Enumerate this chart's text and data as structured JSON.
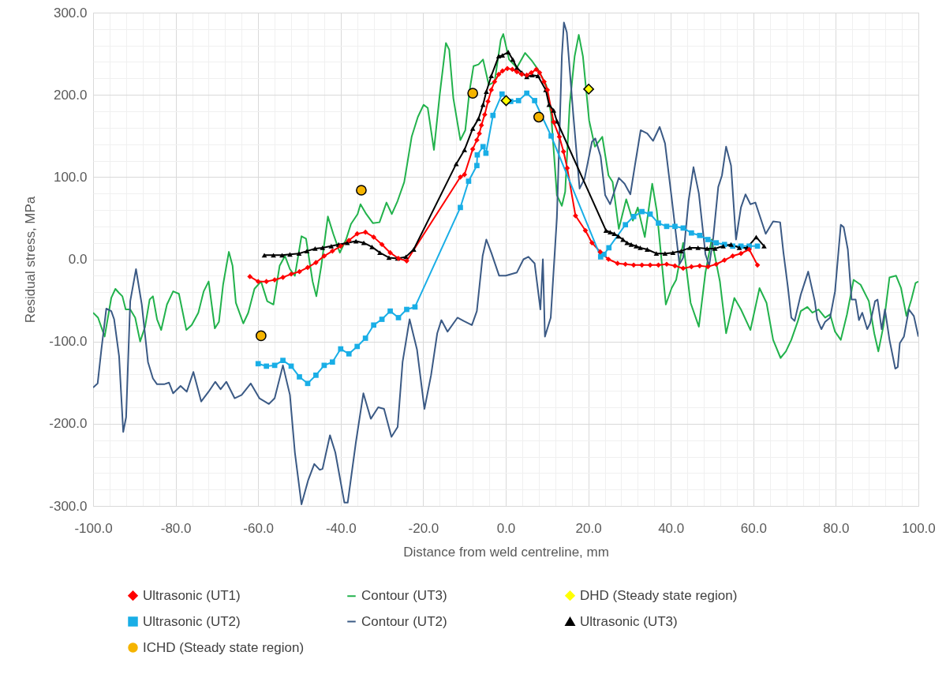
{
  "chart_data": {
    "type": "line",
    "xlabel": "Distance from weld centreline, mm",
    "ylabel": "Residual stress, MPa",
    "xlim": [
      -100,
      100
    ],
    "ylim": [
      -300,
      300
    ],
    "xticks": [
      {
        "value": -100,
        "label": "-100.0"
      },
      {
        "value": -80,
        "label": "-80.0"
      },
      {
        "value": -60,
        "label": "-60.0"
      },
      {
        "value": -40,
        "label": "-40.0"
      },
      {
        "value": -20,
        "label": "-20.0"
      },
      {
        "value": 0,
        "label": "0.0"
      },
      {
        "value": 20,
        "label": "20.0"
      },
      {
        "value": 40,
        "label": "40.0"
      },
      {
        "value": 60,
        "label": "60.0"
      },
      {
        "value": 80,
        "label": "80.0"
      },
      {
        "value": 100,
        "label": "100.0"
      }
    ],
    "yticks": [
      {
        "value": -300,
        "label": "-300.0"
      },
      {
        "value": -200,
        "label": "-200.0"
      },
      {
        "value": -100,
        "label": "-100.0"
      },
      {
        "value": 0,
        "label": "0.0"
      },
      {
        "value": 100,
        "label": "100.0"
      },
      {
        "value": 200,
        "label": "200.0"
      },
      {
        "value": 300,
        "label": "300.0"
      }
    ],
    "grid": true,
    "legend": "bottom",
    "line_style": "solid",
    "series": [
      {
        "name": "Ultrasonic (UT1)",
        "type": "line",
        "marker": "diamond",
        "color": "#ff0000",
        "x": [
          -62,
          -60,
          -58,
          -56,
          -54,
          -52,
          -50,
          -48,
          -46,
          -44,
          -42,
          -40,
          -38,
          -36,
          -34,
          -32,
          -30,
          -28,
          -26,
          -24,
          -11,
          -10,
          -8,
          -7,
          -6.4,
          -5.9,
          -5.1,
          -4.3,
          -3.5,
          -2.7,
          -1.7,
          -0.8,
          0.4,
          1.6,
          2.7,
          3.9,
          5.1,
          6.2,
          7.4,
          8.2,
          9.3,
          10.1,
          11.6,
          13,
          14,
          14.9,
          16.9,
          19.3,
          20.9,
          22.9,
          24.9,
          27.1,
          29,
          31,
          33,
          35,
          37,
          39,
          41,
          43,
          45,
          47,
          49,
          51,
          53,
          55,
          57,
          59,
          61
        ],
        "values": [
          -21,
          -27,
          -27,
          -25,
          -22,
          -18,
          -15,
          -10,
          -4,
          4,
          10,
          16,
          23,
          31,
          33,
          27,
          18,
          8,
          1,
          -2,
          100,
          103,
          134,
          145,
          153,
          163,
          176,
          192,
          206,
          216,
          225,
          229,
          232,
          231,
          228,
          225,
          224,
          227,
          231,
          227,
          216,
          206,
          167,
          149,
          131,
          111,
          53,
          35,
          20,
          9,
          0,
          -5,
          -6,
          -7,
          -7,
          -7,
          -7,
          -6,
          -8,
          -11,
          -9,
          -8,
          -9,
          -6,
          -1,
          4,
          7,
          12,
          -7
        ]
      },
      {
        "name": "Ultrasonic (UT2)",
        "type": "line",
        "marker": "square",
        "color": "#19aee6",
        "x": [
          -60,
          -58,
          -56,
          -54,
          -52,
          -50,
          -48,
          -46,
          -44,
          -42,
          -40,
          -38,
          -36,
          -34,
          -32,
          -30,
          -28,
          -26,
          -24,
          -22,
          -11,
          -9,
          -7,
          -6.9,
          -5.5,
          -4.8,
          -3.1,
          -0.9,
          1.2,
          3.1,
          5.1,
          7,
          11,
          23,
          23.8,
          25,
          29,
          31,
          33,
          35,
          37,
          39,
          41,
          43,
          45,
          47,
          49,
          51,
          53,
          55,
          57,
          59,
          61
        ],
        "values": [
          -127,
          -130,
          -129,
          -123,
          -130,
          -143,
          -151,
          -141,
          -129,
          -125,
          -109,
          -115,
          -106,
          -96,
          -80,
          -73,
          -63,
          -71,
          -61,
          -58,
          63,
          95,
          114,
          127,
          137,
          129,
          175,
          201,
          192,
          193,
          202,
          193,
          150,
          3,
          6,
          14,
          42,
          52,
          58,
          55,
          44,
          40,
          40,
          38,
          32,
          29,
          24,
          20,
          18,
          16,
          16,
          16,
          16
        ]
      },
      {
        "name": "Ultrasonic (UT3)",
        "type": "line",
        "marker": "triangle",
        "color": "#000000",
        "x": [
          -58.5,
          -56.3,
          -54.2,
          -52.3,
          -50.1,
          -48.2,
          -46.2,
          -44.4,
          -42.3,
          -40.5,
          -38.4,
          -36.3,
          -34.4,
          -32.4,
          -30.5,
          -28.3,
          -26.2,
          -24.2,
          -22.3,
          -12,
          -10,
          -8,
          -6.6,
          -5.5,
          -4.7,
          -3.5,
          -1.7,
          -0.8,
          0.6,
          1.7,
          2.7,
          3.9,
          5.1,
          6.4,
          7.8,
          9.7,
          10.5,
          11.6,
          12.4,
          24.3,
          25.3,
          26.3,
          27.3,
          28.4,
          29.4,
          30.4,
          31.6,
          32.6,
          34.3,
          36.5,
          38.6,
          40.5,
          42.5,
          44.6,
          46.6,
          48.8,
          50.7,
          52.7,
          54.6,
          56.6,
          58.5,
          60.7,
          62.6
        ],
        "values": [
          5,
          5,
          5,
          6,
          7,
          10,
          13,
          14,
          16,
          18,
          20,
          22,
          20,
          15,
          8,
          2,
          1,
          3,
          12,
          116,
          133,
          159,
          171,
          188,
          204,
          223,
          247,
          248,
          252,
          243,
          233,
          227,
          222,
          224,
          223,
          206,
          188,
          181,
          168,
          35,
          33,
          31,
          28,
          24,
          20,
          18,
          16,
          14,
          12,
          7,
          7,
          8,
          10,
          14,
          14,
          13,
          13,
          16,
          18,
          14,
          14,
          27,
          16
        ]
      },
      {
        "name": "Contour (UT3)",
        "type": "line",
        "marker": "none",
        "color": "#22b24c",
        "x": [
          -100,
          -98.8,
          -97.2,
          -95.6,
          -94.6,
          -93.7,
          -92.9,
          -92.1,
          -91,
          -89.8,
          -88.6,
          -87.4,
          -86.3,
          -85.5,
          -84.5,
          -83.5,
          -82.1,
          -80.6,
          -79.2,
          -77.4,
          -76.1,
          -74.5,
          -73.2,
          -72,
          -70.5,
          -69.5,
          -68.5,
          -67.1,
          -66.2,
          -65.4,
          -63.6,
          -62.4,
          -60.9,
          -59.3,
          -57.8,
          -56.3,
          -54.8,
          -53.5,
          -52.3,
          -51.1,
          -49.5,
          -48.4,
          -46.8,
          -45.9,
          -44.7,
          -43.1,
          -41.8,
          -40.2,
          -38.7,
          -37.5,
          -35.9,
          -35.2,
          -33.8,
          -32.2,
          -30.6,
          -28.9,
          -27.6,
          -26.2,
          -24.6,
          -22.8,
          -21.3,
          -19.9,
          -18.9,
          -17.4,
          -16,
          -14.5,
          -13.7,
          -12.7,
          -11,
          -9.8,
          -8.8,
          -7.8,
          -6.6,
          -5.5,
          -4.1,
          -2.7,
          -1.2,
          -0.6,
          0.8,
          2.7,
          4.7,
          6.4,
          7.8,
          9.8,
          11,
          12.4,
          13.6,
          14.4,
          15.5,
          16.7,
          17.7,
          18.7,
          20.2,
          21.6,
          23.4,
          24.9,
          25.9,
          27.4,
          29.2,
          30.8,
          32,
          33.7,
          35.5,
          36.6,
          38.8,
          40.2,
          41.3,
          43,
          44.8,
          46.8,
          48.4,
          49.9,
          51.9,
          53.4,
          55.4,
          57,
          59.3,
          61.5,
          63.2,
          64.8,
          66.6,
          67.9,
          69.2,
          70.8,
          71.5,
          73.1,
          74.3,
          75.8,
          77.4,
          78.6,
          79.8,
          81.2,
          82.7,
          84.3,
          86,
          88,
          89.3,
          90.3,
          91.5,
          93,
          94.6,
          95.8,
          97.1,
          98.3,
          99.3,
          100
        ],
        "values": [
          -65,
          -71,
          -94,
          -47,
          -36,
          -41,
          -45,
          -61,
          -61,
          -71,
          -100,
          -82,
          -49,
          -45,
          -73,
          -86,
          -55,
          -39,
          -42,
          -86,
          -80,
          -65,
          -39,
          -27,
          -84,
          -76,
          -31,
          9,
          -8,
          -53,
          -78,
          -65,
          -36,
          -27,
          -51,
          -55,
          -8,
          4,
          -12,
          -20,
          28,
          25,
          -27,
          -45,
          -8,
          52,
          31,
          8,
          24,
          43,
          55,
          67,
          55,
          44,
          45,
          69,
          55,
          71,
          94,
          149,
          173,
          188,
          184,
          133,
          200,
          263,
          255,
          196,
          145,
          157,
          204,
          235,
          237,
          243,
          212,
          216,
          267,
          274,
          243,
          233,
          251,
          241,
          231,
          212,
          176,
          78,
          65,
          82,
          188,
          247,
          273,
          247,
          169,
          137,
          149,
          102,
          94,
          37,
          73,
          47,
          63,
          27,
          92,
          59,
          -55,
          -35,
          -25,
          20,
          -53,
          -82,
          -16,
          24,
          -27,
          -90,
          -47,
          -61,
          -86,
          -35,
          -53,
          -98,
          -120,
          -112,
          -98,
          -75,
          -63,
          -58,
          -65,
          -61,
          -71,
          -67,
          -88,
          -98,
          -67,
          -25,
          -31,
          -51,
          -90,
          -112,
          -82,
          -22,
          -20,
          -35,
          -69,
          -49,
          -29,
          -27
        ]
      },
      {
        "name": "Contour (UT2)",
        "type": "line",
        "marker": "none",
        "color": "#3b5a85",
        "x": [
          -100,
          -98.9,
          -98,
          -96.8,
          -95.6,
          -94.9,
          -93.7,
          -92.7,
          -92,
          -91,
          -89.6,
          -88.2,
          -86.7,
          -85.5,
          -84.5,
          -82.8,
          -81.6,
          -80.6,
          -78.8,
          -77.3,
          -75.7,
          -73.8,
          -72,
          -70.4,
          -69.1,
          -67.7,
          -65.7,
          -64,
          -61.8,
          -59.7,
          -57.4,
          -56,
          -54,
          -52.3,
          -51.1,
          -49.5,
          -47.9,
          -46.4,
          -45.1,
          -44.4,
          -42.6,
          -41.3,
          -39.1,
          -38.3,
          -36.3,
          -34.5,
          -32.7,
          -30.9,
          -29.5,
          -27.7,
          -26.2,
          -25,
          -23.3,
          -21.5,
          -19.7,
          -18.1,
          -16.6,
          -15.6,
          -14.1,
          -11.7,
          -10.2,
          -8.2,
          -7,
          -5.6,
          -4.7,
          -3.5,
          -1.6,
          0,
          2.7,
          4.3,
          5.5,
          7,
          8.4,
          9,
          9.5,
          10.9,
          12.4,
          13.6,
          14.1,
          14.8,
          16.3,
          17.9,
          19.1,
          20.9,
          21.7,
          23,
          24.1,
          25.3,
          27.4,
          28.8,
          30.2,
          31.3,
          32.7,
          34.3,
          35.7,
          37.3,
          38.6,
          40.2,
          42.1,
          43,
          44.3,
          45.5,
          46.8,
          48.4,
          49.3,
          50.3,
          51.5,
          52.4,
          53.4,
          54.6,
          55.8,
          57,
          58.1,
          59.3,
          60.5,
          63,
          64.8,
          66.5,
          67.3,
          68.4,
          69.2,
          70,
          71.5,
          73.3,
          74.9,
          75.5,
          76.5,
          77.4,
          78.6,
          79.8,
          81.2,
          81.9,
          82.9,
          83.8,
          84.8,
          85.6,
          86.4,
          87.6,
          88.3,
          89.5,
          90.1,
          91.1,
          91.9,
          93,
          94.4,
          95,
          95.5,
          96.5,
          97.7,
          98.9,
          100
        ],
        "values": [
          -156,
          -151,
          -110,
          -60,
          -63,
          -73,
          -118,
          -210,
          -192,
          -51,
          -12,
          -55,
          -125,
          -145,
          -152,
          -152,
          -150,
          -163,
          -154,
          -161,
          -137,
          -173,
          -161,
          -149,
          -158,
          -149,
          -169,
          -165,
          -151,
          -169,
          -176,
          -169,
          -129,
          -165,
          -235,
          -298,
          -269,
          -249,
          -256,
          -255,
          -214,
          -235,
          -296,
          -296,
          -222,
          -163,
          -194,
          -180,
          -182,
          -216,
          -204,
          -125,
          -73,
          -110,
          -182,
          -141,
          -90,
          -74,
          -88,
          -71,
          -75,
          -80,
          -63,
          4,
          24,
          8,
          -20,
          -20,
          -16,
          0,
          3,
          -5,
          -61,
          0,
          -94,
          -71,
          51,
          247,
          288,
          276,
          180,
          86,
          98,
          143,
          147,
          125,
          78,
          67,
          99,
          92,
          79,
          114,
          157,
          153,
          144,
          161,
          141,
          75,
          -6,
          2,
          71,
          112,
          80,
          6,
          -8,
          27,
          88,
          102,
          137,
          114,
          24,
          63,
          79,
          67,
          69,
          31,
          46,
          45,
          8,
          -35,
          -71,
          -75,
          -43,
          -15,
          -51,
          -73,
          -85,
          -76,
          -71,
          -39,
          42,
          39,
          12,
          -49,
          -49,
          -74,
          -65,
          -85,
          -78,
          -51,
          -49,
          -85,
          -61,
          -98,
          -133,
          -131,
          -102,
          -94,
          -61,
          -69,
          -94
        ]
      },
      {
        "name": "ICHD (Steady state region)",
        "type": "scatter",
        "marker": "circle",
        "color": "#f5b400",
        "x": [
          -59.3,
          -35,
          -8,
          8
        ],
        "values": [
          -93,
          84,
          202,
          173
        ]
      },
      {
        "name": "DHD (Steady state region)",
        "type": "scatter",
        "marker": "diamond",
        "color": "#ffff00",
        "x": [
          0.1,
          20.1
        ],
        "values": [
          193,
          207
        ]
      }
    ]
  }
}
